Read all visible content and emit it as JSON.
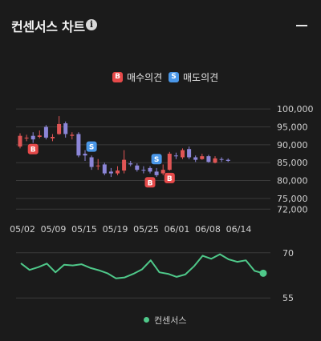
{
  "header": {
    "title": "컨센서스 차트"
  },
  "legend": {
    "buy_label": "매수의견",
    "sell_label": "매도의견",
    "buy_badge": "B",
    "sell_badge": "S"
  },
  "bottom_legend": {
    "label": "컨센서스"
  },
  "colors": {
    "up": "#e05555",
    "down": "#8c86d8",
    "consensus": "#4fc98a",
    "buy": "#e64a4a",
    "sell": "#4a97e8"
  },
  "chart_data": [
    {
      "type": "candlestick",
      "title": "",
      "y_ticks": [
        72000,
        75000,
        80000,
        85000,
        90000,
        95000,
        100000
      ],
      "y_tick_labels": [
        "72,000",
        "75,000",
        "80,000",
        "85,000",
        "90,000",
        "95,000",
        "100,000"
      ],
      "ylim": [
        70500,
        102500
      ],
      "x_tick_labels": [
        "05/02",
        "05/09",
        "05/15",
        "05/19",
        "05/25",
        "06/01",
        "06/08",
        "06/14"
      ],
      "x_tick_index": [
        0,
        5,
        10,
        15,
        20,
        25,
        30,
        35
      ],
      "candles": [
        {
          "o": 89500,
          "c": 92500,
          "h": 93200,
          "l": 89000
        },
        {
          "o": 91800,
          "c": 92000,
          "h": 92800,
          "l": 91000
        },
        {
          "o": 92500,
          "c": 91500,
          "h": 93500,
          "l": 90500
        },
        {
          "o": 92200,
          "c": 92600,
          "h": 94000,
          "l": 91800
        },
        {
          "o": 95000,
          "c": 92000,
          "h": 95500,
          "l": 91500
        },
        {
          "o": 91800,
          "c": 92200,
          "h": 93000,
          "l": 91000
        },
        {
          "o": 93000,
          "c": 95800,
          "h": 98000,
          "l": 92800
        },
        {
          "o": 96000,
          "c": 93000,
          "h": 96500,
          "l": 92000
        },
        {
          "o": 92500,
          "c": 92800,
          "h": 93500,
          "l": 91500
        },
        {
          "o": 93000,
          "c": 87000,
          "h": 93500,
          "l": 86500
        },
        {
          "o": 87500,
          "c": 87000,
          "h": 88500,
          "l": 85500
        },
        {
          "o": 86500,
          "c": 83800,
          "h": 87000,
          "l": 83000
        },
        {
          "o": 84000,
          "c": 84200,
          "h": 86000,
          "l": 83000
        },
        {
          "o": 84500,
          "c": 82000,
          "h": 85000,
          "l": 81500
        },
        {
          "o": 82500,
          "c": 82000,
          "h": 83500,
          "l": 81000
        },
        {
          "o": 82000,
          "c": 82800,
          "h": 84000,
          "l": 81500
        },
        {
          "o": 82800,
          "c": 85800,
          "h": 88500,
          "l": 82000
        },
        {
          "o": 84800,
          "c": 84500,
          "h": 85500,
          "l": 84000
        },
        {
          "o": 84200,
          "c": 83000,
          "h": 84800,
          "l": 82500
        },
        {
          "o": 83000,
          "c": 82800,
          "h": 84000,
          "l": 82000
        },
        {
          "o": 83500,
          "c": 82500,
          "h": 84000,
          "l": 82000
        },
        {
          "o": 82500,
          "c": 81500,
          "h": 83500,
          "l": 81000
        },
        {
          "o": 82000,
          "c": 83000,
          "h": 84500,
          "l": 81500
        },
        {
          "o": 83000,
          "c": 87500,
          "h": 88000,
          "l": 82800
        },
        {
          "o": 87000,
          "c": 86800,
          "h": 87800,
          "l": 86000
        },
        {
          "o": 86500,
          "c": 88500,
          "h": 89000,
          "l": 86000
        },
        {
          "o": 88800,
          "c": 86500,
          "h": 89500,
          "l": 86000
        },
        {
          "o": 86500,
          "c": 85800,
          "h": 87000,
          "l": 85200
        },
        {
          "o": 86000,
          "c": 86800,
          "h": 87500,
          "l": 85800
        },
        {
          "o": 86800,
          "c": 85200,
          "h": 87200,
          "l": 85000
        },
        {
          "o": 85000,
          "c": 86200,
          "h": 86800,
          "l": 84800
        },
        {
          "o": 86000,
          "c": 85800,
          "h": 86500,
          "l": 85200
        },
        {
          "o": 85800,
          "c": 85500,
          "h": 86200,
          "l": 85200
        }
      ],
      "markers": [
        {
          "type": "B",
          "index": 2,
          "value": 88800
        },
        {
          "type": "S",
          "index": 11,
          "value": 89500
        },
        {
          "type": "B",
          "index": 20,
          "value": 79500
        },
        {
          "type": "S",
          "index": 21,
          "value": 86000
        },
        {
          "type": "B",
          "index": 23,
          "value": 80700
        }
      ]
    },
    {
      "type": "line",
      "name": "컨센서스",
      "y_ticks": [
        55,
        70
      ],
      "y_tick_labels": [
        "55",
        "70"
      ],
      "ylim": [
        54,
        71
      ],
      "values": [
        66.5,
        64.3,
        65.2,
        66.4,
        63.5,
        66.0,
        65.8,
        66.2,
        65.0,
        64.2,
        63.2,
        61.5,
        61.8,
        63.0,
        64.5,
        67.5,
        63.5,
        63.0,
        62.0,
        62.8,
        65.5,
        69.0,
        68.0,
        69.5,
        67.8,
        67.0,
        67.5,
        64.0,
        63.2
      ]
    }
  ]
}
